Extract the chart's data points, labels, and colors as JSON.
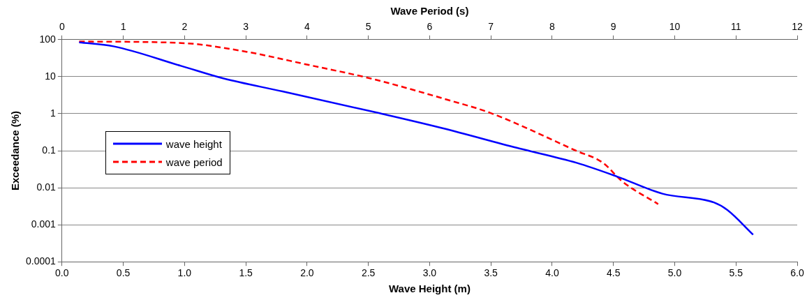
{
  "chart_data": {
    "type": "line",
    "xlabel": "Wave Height (m)",
    "x2label": "Wave Period (s)",
    "ylabel": "Exceedance (%)",
    "xlim": [
      0,
      6
    ],
    "xticks": [
      {
        "value": 0,
        "label": "0.0"
      },
      {
        "value": 0.5,
        "label": "0.5"
      },
      {
        "value": 1,
        "label": "1.0"
      },
      {
        "value": 1.5,
        "label": "1.5"
      },
      {
        "value": 2,
        "label": "2.0"
      },
      {
        "value": 2.5,
        "label": "2.5"
      },
      {
        "value": 3,
        "label": "3.0"
      },
      {
        "value": 3.5,
        "label": "3.5"
      },
      {
        "value": 4,
        "label": "4.0"
      },
      {
        "value": 4.5,
        "label": "4.5"
      },
      {
        "value": 5,
        "label": "5.0"
      },
      {
        "value": 5.5,
        "label": "5.5"
      },
      {
        "value": 6,
        "label": "6.0"
      }
    ],
    "x2lim": [
      0,
      12
    ],
    "x2ticks": [
      0,
      1,
      2,
      3,
      4,
      5,
      6,
      7,
      8,
      9,
      10,
      11,
      12
    ],
    "ylim": [
      0.0001,
      100
    ],
    "yticks": [
      0.0001,
      0.001,
      0.01,
      0.1,
      1,
      10,
      100
    ],
    "log": "y",
    "grid": "y",
    "legend": "left",
    "marker": "none",
    "series": [
      {
        "name": "wave height",
        "color": "#0000ff",
        "line_style": "solid",
        "x": [
          0.14,
          0.42,
          0.97,
          1.32,
          1.8,
          2.58,
          3.1,
          3.71,
          4.2,
          4.53,
          4.9,
          5.32,
          5.43,
          5.64
        ],
        "values": [
          84,
          66,
          19.6,
          8.9,
          4,
          1.05,
          0.41,
          0.12,
          0.047,
          0.02,
          0.0069,
          0.004,
          0.0025,
          0.00054
        ]
      },
      {
        "name": "wave period",
        "color": "#ff0000",
        "line_style": "dashed",
        "axis": "x2",
        "x": [
          0.28,
          1.95,
          2.98,
          4.01,
          5.04,
          6.32,
          6.99,
          8.39,
          8.83,
          9.14,
          9.73
        ],
        "values": [
          89,
          81,
          48,
          21,
          8.9,
          2.3,
          1.05,
          0.1,
          0.047,
          0.015,
          0.0036
        ]
      }
    ]
  }
}
